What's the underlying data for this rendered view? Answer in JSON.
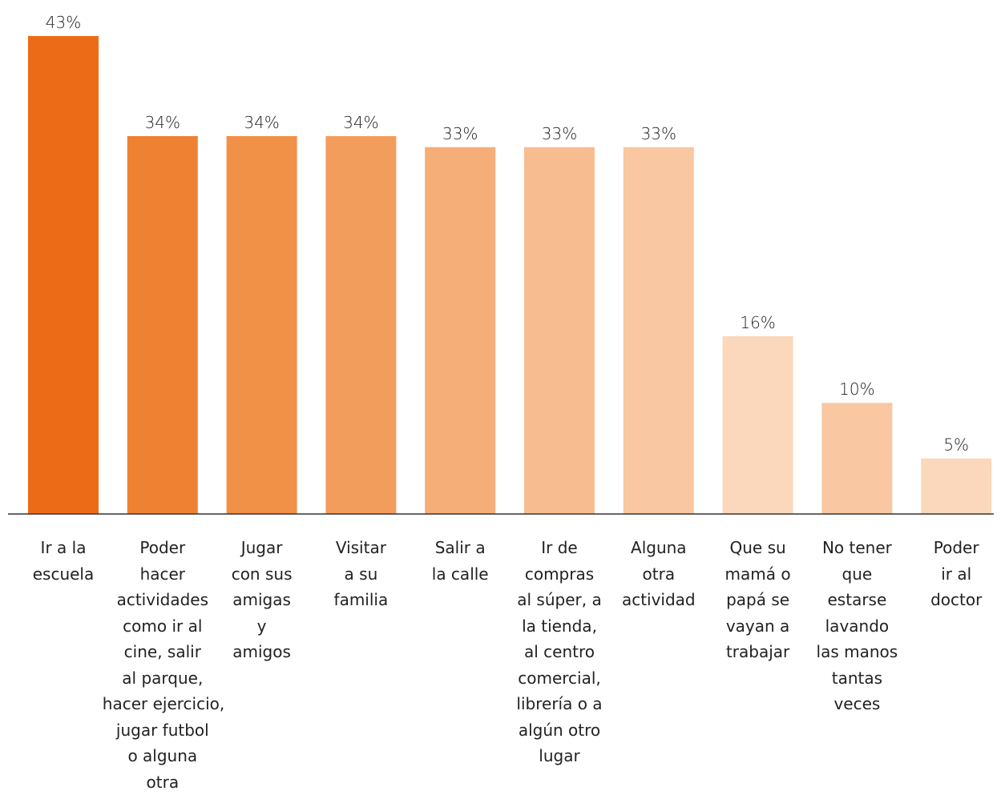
{
  "chart_data": {
    "type": "bar",
    "title": "",
    "xlabel": "",
    "ylabel": "",
    "ylim": [
      0,
      43
    ],
    "grid": false,
    "categories": [
      [
        "Ir a la",
        "escuela"
      ],
      [
        "Poder",
        "hacer",
        "actividades",
        "como ir al",
        "cine, salir",
        "al parque,",
        "hacer ejercicio,",
        "jugar futbol",
        "o alguna",
        "otra"
      ],
      [
        "Jugar",
        "con sus",
        "amigas",
        "y",
        "amigos"
      ],
      [
        "Visitar",
        "a su",
        "familia"
      ],
      [
        "Salir a",
        "la calle"
      ],
      [
        "Ir de",
        "compras",
        "al súper, a",
        "la tienda,",
        "al centro",
        "comercial,",
        "librería o a",
        "algún otro",
        "lugar"
      ],
      [
        "Alguna",
        "otra",
        "actividad"
      ],
      [
        "Que su",
        "mamá o",
        "papá se",
        "vayan a",
        "trabajar"
      ],
      [
        "No tener",
        "que",
        "estarse",
        "lavando",
        "las manos",
        "tantas",
        "veces"
      ],
      [
        "Poder",
        "ir al",
        "doctor"
      ]
    ],
    "values": [
      43,
      34,
      34,
      34,
      33,
      33,
      33,
      16,
      10,
      5
    ],
    "value_labels": [
      "43%",
      "34%",
      "34%",
      "34%",
      "33%",
      "33%",
      "33%",
      "16%",
      "10%",
      "5%"
    ],
    "colors": [
      "#ec6b16",
      "#ef8132",
      "#f19047",
      "#f39d5c",
      "#f5ae78",
      "#f7bd91",
      "#f9c7a1",
      "#fbd7bb",
      "#f9c7a1",
      "#fbd7bb"
    ],
    "axis_color": "#333333"
  }
}
